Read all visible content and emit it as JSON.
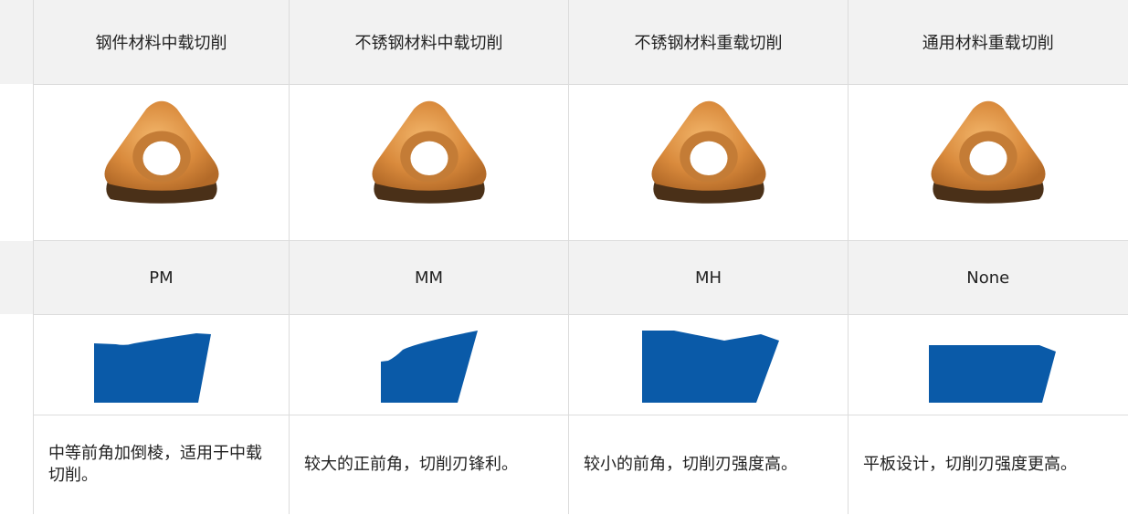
{
  "table": {
    "header": [
      "钢件材料中载切削",
      "不锈钢材料中载切削",
      "不锈钢材料重载切削",
      "通用材料重载切削"
    ],
    "codes": [
      "PM",
      "MM",
      "MH",
      "None"
    ],
    "descriptions": [
      "中等前角加倒棱，适用于中载切削。",
      "较大的正前角，切削刃锋利。",
      "较小的前角，切削刃强度高。",
      "平板设计，切削刃强度更高。"
    ]
  }
}
